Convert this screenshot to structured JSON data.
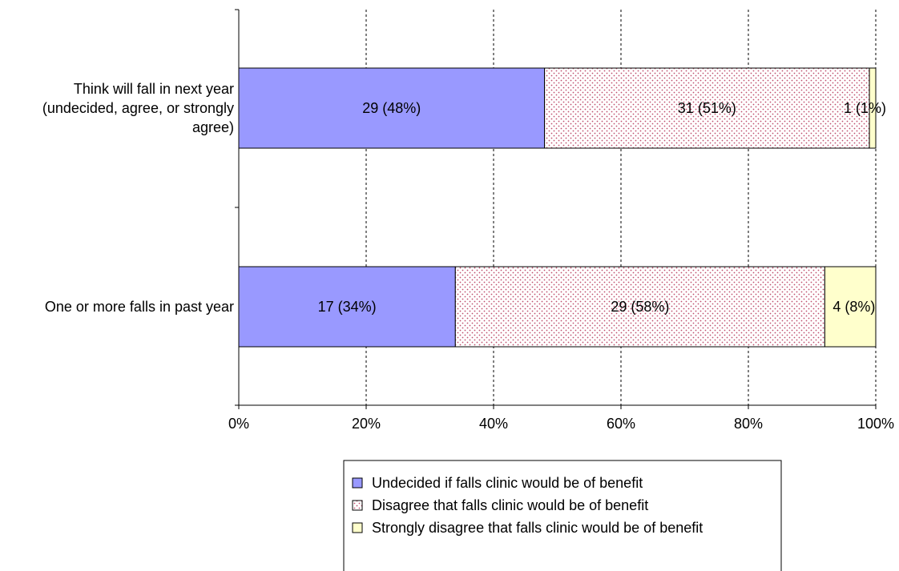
{
  "chart_data": {
    "type": "bar",
    "orientation": "horizontal",
    "stacked": "percent",
    "categories": [
      [
        "Think will fall in next year",
        "(undecided, agree, or strongly",
        "agree)"
      ],
      [
        "One or more falls in past year"
      ]
    ],
    "series": [
      {
        "name": "Undecided if falls clinic would be of benefit",
        "color": "#9999ff",
        "pattern": "solid",
        "values": [
          48,
          34
        ],
        "labels": [
          "29 (48%)",
          "17 (34%)"
        ]
      },
      {
        "name": "Disagree that falls clinic would be of benefit",
        "color": "#ffffff",
        "pattern": "dots",
        "dot_color": "#c0506e",
        "values": [
          51,
          58
        ],
        "labels": [
          "31 (51%)",
          "29 (58%)"
        ]
      },
      {
        "name": "Strongly disagree that falls clinic would be of benefit",
        "color": "#ffffcc",
        "pattern": "solid",
        "values": [
          1,
          8
        ],
        "labels": [
          "1 (1%)",
          "4 (8%)"
        ]
      }
    ],
    "xlim": [
      0,
      100
    ],
    "xticks": [
      "0%",
      "20%",
      "40%",
      "60%",
      "80%",
      "100%"
    ],
    "grid": "vertical dashed",
    "legend_position": "bottom"
  }
}
